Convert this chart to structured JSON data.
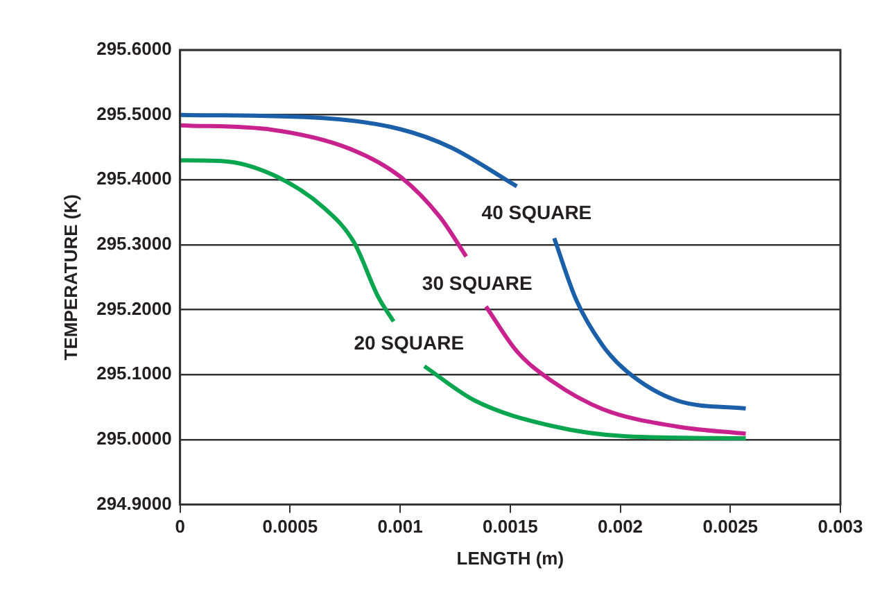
{
  "chart_data": {
    "type": "line",
    "xlabel": "LENGTH (m)",
    "ylabel": "TEMPERATURE (K)",
    "xlim": [
      0,
      0.003
    ],
    "xticks": [
      0,
      0.0005,
      0.001,
      0.0015,
      0.002,
      0.0025,
      0.003
    ],
    "ylim": [
      294.9,
      295.6
    ],
    "yticks": [
      {
        "value": 294.9,
        "label": "294.9000"
      },
      {
        "value": 295.0,
        "label": "295.0000"
      },
      {
        "value": 295.1,
        "label": "295.1000"
      },
      {
        "value": 295.2,
        "label": "295.2000"
      },
      {
        "value": 295.3,
        "label": "295.3000"
      },
      {
        "value": 295.4,
        "label": "295.4000"
      },
      {
        "value": 295.5,
        "label": "295.5000"
      },
      {
        "value": 295.6,
        "label": "295.6000"
      }
    ],
    "grid": "y",
    "legend": false,
    "marker": "none",
    "line_style": "solid",
    "series": [
      {
        "name": "40 SQUARE",
        "color": "#1a5fa8",
        "x": [
          0,
          0.00065,
          0.001,
          0.00123,
          0.00153,
          0.00162,
          0.0017,
          0.0018,
          0.00192,
          0.00203,
          0.00226,
          0.00257
        ],
        "values": [
          295.5,
          295.495,
          295.478,
          295.45,
          295.39,
          null,
          295.31,
          295.215,
          295.145,
          295.105,
          295.06,
          295.048
        ]
      },
      {
        "name": "30 SQUARE",
        "color": "#c8228e",
        "x": [
          0,
          0.00042,
          0.00077,
          0.001,
          0.00118,
          0.0013,
          0.00135,
          0.00139,
          0.00153,
          0.00169,
          0.00192,
          0.00226,
          0.00257
        ],
        "values": [
          295.484,
          295.477,
          295.448,
          295.405,
          295.343,
          295.282,
          null,
          295.205,
          295.136,
          295.09,
          295.047,
          295.02,
          295.009
        ]
      },
      {
        "name": "20 SQUARE",
        "color": "#0aa54f",
        "x": [
          0,
          0.00019,
          0.00042,
          0.00065,
          0.00079,
          0.0009,
          0.00097,
          0.00104,
          0.00111,
          0.00134,
          0.00169,
          0.00203,
          0.00257
        ],
        "values": [
          295.43,
          295.429,
          295.408,
          295.358,
          295.304,
          295.22,
          295.182,
          null,
          295.113,
          295.06,
          295.021,
          295.005,
          295.002
        ]
      }
    ]
  }
}
